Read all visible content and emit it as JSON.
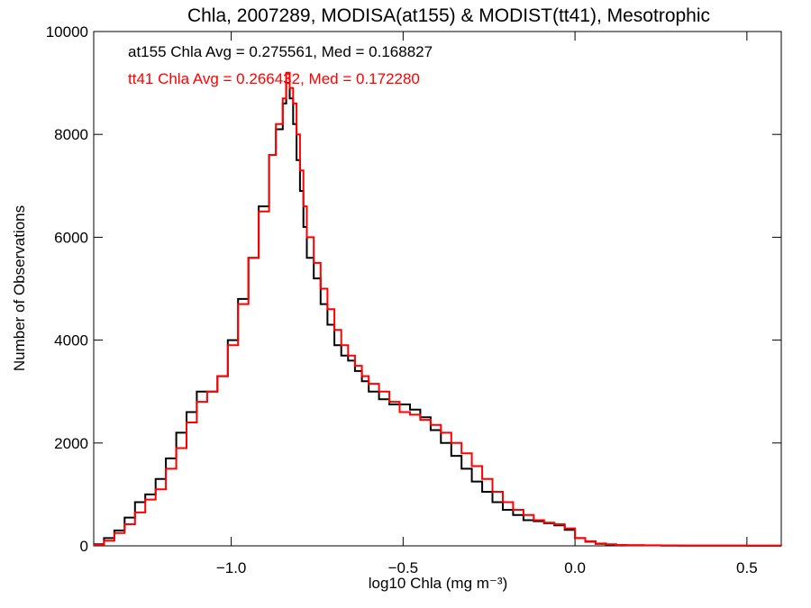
{
  "chart_data": {
    "type": "line",
    "title": "Chla, 2007289, MODISA(at155) & MODIST(tt41), Mesotrophic",
    "xlabel": "log10 Chla (mg m⁻³)",
    "ylabel": "Number of Observations",
    "xlim": [
      -1.4,
      0.6
    ],
    "ylim": [
      0,
      10000
    ],
    "x_ticks": [
      -1.0,
      -0.5,
      0.0,
      0.5
    ],
    "x_tick_labels": [
      "−1.0",
      "−0.5",
      "0.0",
      "0.5"
    ],
    "y_ticks": [
      0,
      2000,
      4000,
      6000,
      8000,
      10000
    ],
    "y_tick_labels": [
      "0",
      "2000",
      "4000",
      "6000",
      "8000",
      "10000"
    ],
    "grid": false,
    "step": true,
    "annotations": [
      {
        "text": "at155 Chla Avg = 0.275561, Med = 0.168827",
        "color": "#000000"
      },
      {
        "text": "tt41 Chla Avg = 0.266432, Med = 0.172280",
        "color": "#ff0000"
      }
    ],
    "series": [
      {
        "color": "#000000",
        "x": [
          -1.4,
          -1.37,
          -1.34,
          -1.31,
          -1.28,
          -1.25,
          -1.22,
          -1.19,
          -1.16,
          -1.13,
          -1.1,
          -1.07,
          -1.04,
          -1.01,
          -0.98,
          -0.95,
          -0.92,
          -0.89,
          -0.87,
          -0.85,
          -0.84,
          -0.83,
          -0.82,
          -0.81,
          -0.8,
          -0.79,
          -0.78,
          -0.76,
          -0.74,
          -0.72,
          -0.7,
          -0.68,
          -0.66,
          -0.64,
          -0.62,
          -0.6,
          -0.57,
          -0.54,
          -0.51,
          -0.48,
          -0.45,
          -0.42,
          -0.39,
          -0.36,
          -0.33,
          -0.3,
          -0.27,
          -0.24,
          -0.21,
          -0.18,
          -0.15,
          -0.12,
          -0.09,
          -0.06,
          -0.03,
          0.0,
          0.03,
          0.06,
          0.09,
          0.12,
          0.15,
          0.2,
          0.25,
          0.3,
          0.35,
          0.4,
          0.45,
          0.5,
          0.55,
          0.6
        ],
        "y": [
          30,
          150,
          300,
          550,
          850,
          1000,
          1300,
          1700,
          2200,
          2600,
          3000,
          3000,
          3300,
          4000,
          4800,
          5600,
          6600,
          7600,
          8100,
          8600,
          9000,
          8700,
          8200,
          7500,
          6900,
          6200,
          5600,
          5200,
          4700,
          4300,
          3900,
          3700,
          3600,
          3400,
          3200,
          3000,
          2850,
          2750,
          2750,
          2650,
          2500,
          2250,
          2000,
          1750,
          1500,
          1250,
          1050,
          850,
          700,
          600,
          500,
          480,
          440,
          400,
          310,
          150,
          80,
          40,
          25,
          15,
          10,
          8,
          6,
          5,
          4,
          3,
          3,
          2,
          2,
          2
        ]
      },
      {
        "color": "#ff0000",
        "x": [
          -1.4,
          -1.37,
          -1.34,
          -1.31,
          -1.28,
          -1.25,
          -1.22,
          -1.19,
          -1.16,
          -1.13,
          -1.1,
          -1.07,
          -1.04,
          -1.01,
          -0.98,
          -0.95,
          -0.92,
          -0.89,
          -0.87,
          -0.85,
          -0.84,
          -0.83,
          -0.82,
          -0.81,
          -0.8,
          -0.79,
          -0.78,
          -0.76,
          -0.74,
          -0.72,
          -0.7,
          -0.68,
          -0.66,
          -0.64,
          -0.62,
          -0.6,
          -0.57,
          -0.54,
          -0.51,
          -0.48,
          -0.45,
          -0.42,
          -0.39,
          -0.36,
          -0.33,
          -0.3,
          -0.27,
          -0.24,
          -0.21,
          -0.18,
          -0.15,
          -0.12,
          -0.09,
          -0.06,
          -0.03,
          0.0,
          0.03,
          0.06,
          0.09,
          0.12,
          0.15,
          0.2,
          0.25,
          0.3,
          0.35,
          0.4,
          0.45,
          0.5,
          0.55,
          0.6
        ],
        "y": [
          20,
          100,
          250,
          420,
          650,
          900,
          1100,
          1500,
          1900,
          2400,
          2800,
          3000,
          3300,
          3900,
          4700,
          5600,
          6500,
          7600,
          8200,
          8700,
          9200,
          8900,
          8600,
          8000,
          7300,
          6600,
          6000,
          5500,
          5000,
          4600,
          4200,
          3900,
          3700,
          3500,
          3300,
          3150,
          3000,
          2800,
          2600,
          2550,
          2450,
          2350,
          2200,
          2000,
          1800,
          1550,
          1300,
          1050,
          850,
          700,
          600,
          500,
          450,
          420,
          340,
          150,
          90,
          45,
          30,
          18,
          12,
          10,
          8,
          6,
          5,
          4,
          4,
          3,
          3,
          2
        ]
      }
    ]
  }
}
